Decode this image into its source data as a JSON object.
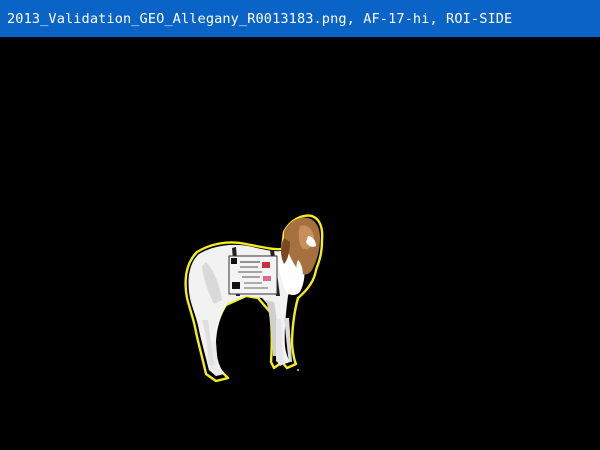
{
  "window": {
    "title": "2013_Validation_GEO_Allegany_R0013183.png, AF-17-hi, ROI-SIDE"
  },
  "colors": {
    "titlebar": "#0a64c8",
    "title_text": "#ffffff",
    "canvas_background": "#000000",
    "roi_outline": "#f4ee1a"
  },
  "image": {
    "subject": "goat-with-id-card",
    "roi_overlay": "yellow-outline"
  }
}
